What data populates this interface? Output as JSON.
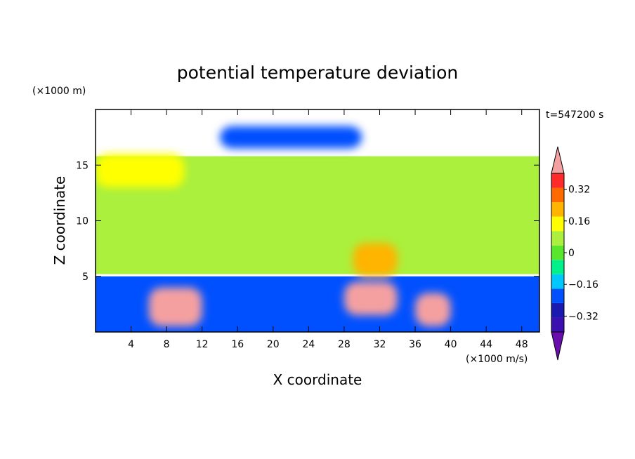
{
  "chart_data": {
    "type": "heatmap",
    "title": "potential temperature deviation",
    "time_label": "t=547200 s",
    "y_unit_label": "(×1000 m)",
    "x_unit_label": "(×1000 m/s)",
    "xlabel": "X coordinate",
    "ylabel": "Z coordinate",
    "xlim": [
      0,
      50
    ],
    "ylim": [
      0,
      20
    ],
    "x_ticks": [
      4,
      8,
      12,
      16,
      20,
      24,
      28,
      32,
      36,
      40,
      44,
      48
    ],
    "y_ticks": [
      5,
      10,
      15
    ],
    "colorbar": {
      "levels": [
        -0.48,
        -0.4,
        -0.32,
        -0.24,
        -0.16,
        -0.08,
        0,
        0.08,
        0.16,
        0.24,
        0.32,
        0.4,
        0.48
      ],
      "tick_values": [
        0.32,
        0.16,
        0,
        -0.16,
        -0.32
      ],
      "tick_labels": [
        "0.32",
        "0.16",
        "0",
        "−0.16",
        "−0.32"
      ],
      "colors_low_to_high": [
        "#6a0dad",
        "#3b0fb0",
        "#1a1ab0",
        "#0050ff",
        "#00c8ff",
        "#00f08c",
        "#5ae62d",
        "#aaf03c",
        "#ffff00",
        "#ffb400",
        "#ff6a00",
        "#ff2a2a",
        "#f5a0a0"
      ]
    },
    "regions": [
      {
        "x": [
          0,
          50
        ],
        "z": [
          5.2,
          15.8
        ],
        "value": 0.0
      },
      {
        "x": [
          0,
          50
        ],
        "z": [
          0,
          5
        ],
        "value": -0.3
      },
      {
        "x": [
          0,
          10
        ],
        "z": [
          13,
          16
        ],
        "value": 0.12
      },
      {
        "x": [
          14,
          30
        ],
        "z": [
          16.5,
          18.5
        ],
        "value": -0.32
      },
      {
        "x": [
          29,
          34
        ],
        "z": [
          5,
          8
        ],
        "value": 0.16
      },
      {
        "x": [
          6,
          12
        ],
        "z": [
          0.5,
          4
        ],
        "value": 0.4
      },
      {
        "x": [
          28,
          34
        ],
        "z": [
          1.5,
          4.5
        ],
        "value": 0.45
      },
      {
        "x": [
          36,
          40
        ],
        "z": [
          0.5,
          3.5
        ],
        "value": 0.45
      }
    ]
  }
}
